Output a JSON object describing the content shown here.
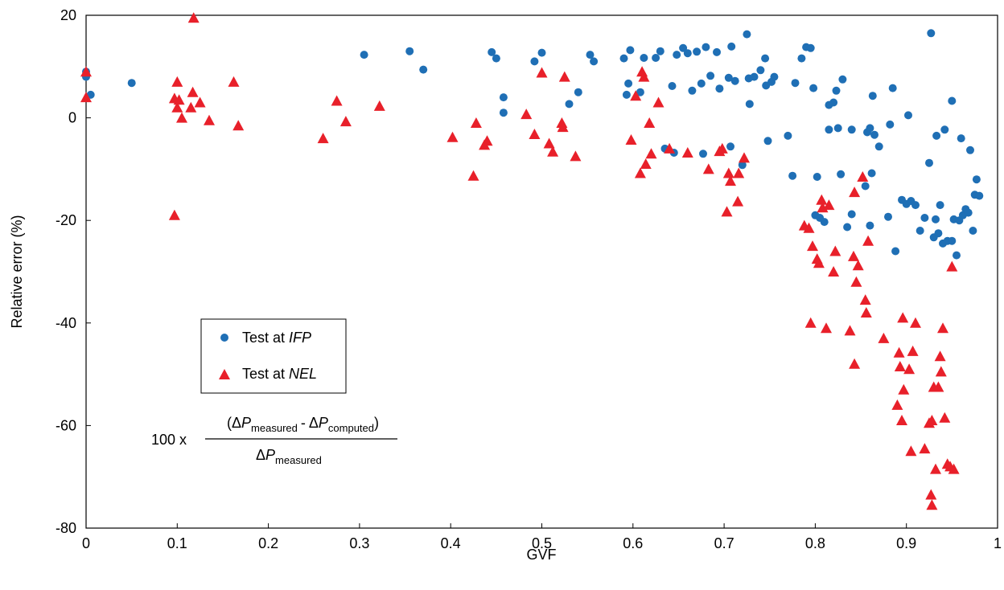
{
  "chart_data": {
    "type": "scatter",
    "xlabel": "GVF",
    "ylabel": "Relative error (%)",
    "xlim": [
      0,
      1
    ],
    "ylim": [
      -80,
      20
    ],
    "xticks": [
      "0",
      "0.1",
      "0.2",
      "0.3",
      "0.4",
      "0.5",
      "0.6",
      "0.7",
      "0.8",
      "0.9",
      "1"
    ],
    "yticks": [
      "20",
      "0",
      "-20",
      "-40",
      "-60",
      "-80"
    ],
    "grid": false,
    "legend_position": "center-left",
    "colors": {
      "ifp": "#1f6fb5",
      "nel": "#e8202a"
    },
    "series": [
      {
        "name": "Test at IFP",
        "name_prefix": "Test at ",
        "name_italic": "IFP",
        "marker": "circle",
        "points": [
          [
            0.0,
            9.0
          ],
          [
            0.0,
            8.0
          ],
          [
            0.005,
            4.5
          ],
          [
            0.05,
            6.8
          ],
          [
            0.305,
            12.3
          ],
          [
            0.355,
            13.0
          ],
          [
            0.37,
            9.4
          ],
          [
            0.445,
            12.8
          ],
          [
            0.45,
            11.6
          ],
          [
            0.458,
            4.0
          ],
          [
            0.458,
            1.0
          ],
          [
            0.492,
            11.0
          ],
          [
            0.5,
            12.7
          ],
          [
            0.53,
            2.7
          ],
          [
            0.54,
            5.0
          ],
          [
            0.553,
            12.3
          ],
          [
            0.557,
            11.0
          ],
          [
            0.59,
            11.6
          ],
          [
            0.593,
            4.5
          ],
          [
            0.595,
            6.7
          ],
          [
            0.597,
            13.2
          ],
          [
            0.608,
            5.0
          ],
          [
            0.612,
            11.7
          ],
          [
            0.625,
            11.7
          ],
          [
            0.63,
            13.0
          ],
          [
            0.635,
            -6.0
          ],
          [
            0.643,
            6.2
          ],
          [
            0.645,
            -6.8
          ],
          [
            0.648,
            12.3
          ],
          [
            0.655,
            13.6
          ],
          [
            0.66,
            12.6
          ],
          [
            0.665,
            5.3
          ],
          [
            0.67,
            12.9
          ],
          [
            0.675,
            6.7
          ],
          [
            0.677,
            -7.0
          ],
          [
            0.68,
            13.8
          ],
          [
            0.685,
            8.2
          ],
          [
            0.692,
            12.8
          ],
          [
            0.695,
            5.7
          ],
          [
            0.705,
            7.8
          ],
          [
            0.707,
            -5.6
          ],
          [
            0.708,
            13.9
          ],
          [
            0.712,
            7.2
          ],
          [
            0.72,
            -9.2
          ],
          [
            0.725,
            16.3
          ],
          [
            0.727,
            7.7
          ],
          [
            0.728,
            2.7
          ],
          [
            0.733,
            8.0
          ],
          [
            0.74,
            9.3
          ],
          [
            0.745,
            11.6
          ],
          [
            0.746,
            6.3
          ],
          [
            0.748,
            -4.5
          ],
          [
            0.752,
            7.0
          ],
          [
            0.755,
            8.0
          ],
          [
            0.77,
            -3.5
          ],
          [
            0.775,
            -11.3
          ],
          [
            0.778,
            6.8
          ],
          [
            0.785,
            11.6
          ],
          [
            0.79,
            13.8
          ],
          [
            0.795,
            13.6
          ],
          [
            0.798,
            5.8
          ],
          [
            0.8,
            -19.0
          ],
          [
            0.802,
            -11.5
          ],
          [
            0.805,
            -19.5
          ],
          [
            0.81,
            -20.3
          ],
          [
            0.815,
            2.5
          ],
          [
            0.815,
            -2.3
          ],
          [
            0.82,
            3.0
          ],
          [
            0.823,
            5.3
          ],
          [
            0.825,
            -2.0
          ],
          [
            0.828,
            -11.0
          ],
          [
            0.83,
            7.5
          ],
          [
            0.835,
            -21.3
          ],
          [
            0.84,
            -2.3
          ],
          [
            0.84,
            -18.8
          ],
          [
            0.855,
            -13.3
          ],
          [
            0.857,
            -2.8
          ],
          [
            0.86,
            -21.0
          ],
          [
            0.86,
            -2.0
          ],
          [
            0.862,
            -10.8
          ],
          [
            0.863,
            4.3
          ],
          [
            0.865,
            -3.3
          ],
          [
            0.87,
            -5.6
          ],
          [
            0.88,
            -19.3
          ],
          [
            0.882,
            -1.3
          ],
          [
            0.885,
            5.8
          ],
          [
            0.888,
            -26.0
          ],
          [
            0.895,
            -16.0
          ],
          [
            0.9,
            -16.8
          ],
          [
            0.902,
            0.5
          ],
          [
            0.905,
            -16.2
          ],
          [
            0.91,
            -17.0
          ],
          [
            0.915,
            -22.0
          ],
          [
            0.92,
            -19.5
          ],
          [
            0.925,
            -8.8
          ],
          [
            0.927,
            16.5
          ],
          [
            0.93,
            -23.3
          ],
          [
            0.932,
            -19.8
          ],
          [
            0.933,
            -3.5
          ],
          [
            0.935,
            -22.5
          ],
          [
            0.937,
            -17.0
          ],
          [
            0.94,
            -24.5
          ],
          [
            0.942,
            -2.3
          ],
          [
            0.945,
            -24.0
          ],
          [
            0.95,
            3.3
          ],
          [
            0.952,
            -19.8
          ],
          [
            0.955,
            -26.8
          ],
          [
            0.958,
            -20.0
          ],
          [
            0.96,
            -4.0
          ],
          [
            0.962,
            -19.0
          ],
          [
            0.965,
            -17.8
          ],
          [
            0.968,
            -18.5
          ],
          [
            0.97,
            -6.3
          ],
          [
            0.973,
            -22.0
          ],
          [
            0.975,
            -15.0
          ],
          [
            0.977,
            -12.0
          ],
          [
            0.98,
            -15.2
          ],
          [
            0.95,
            -24.0
          ]
        ]
      },
      {
        "name": "Test at NEL",
        "name_prefix": "Test at ",
        "name_italic": "NEL",
        "marker": "triangle",
        "points": [
          [
            0.0,
            9.0
          ],
          [
            0.0,
            4.0
          ],
          [
            0.097,
            3.8
          ],
          [
            0.097,
            -19.0
          ],
          [
            0.1,
            7.0
          ],
          [
            0.1,
            2.0
          ],
          [
            0.102,
            3.5
          ],
          [
            0.105,
            0.0
          ],
          [
            0.115,
            2.0
          ],
          [
            0.117,
            5.0
          ],
          [
            0.118,
            19.5
          ],
          [
            0.125,
            3.0
          ],
          [
            0.135,
            -0.5
          ],
          [
            0.162,
            7.0
          ],
          [
            0.167,
            -1.5
          ],
          [
            0.26,
            -4.0
          ],
          [
            0.275,
            3.3
          ],
          [
            0.285,
            -0.7
          ],
          [
            0.322,
            2.3
          ],
          [
            0.402,
            -3.8
          ],
          [
            0.425,
            -11.3
          ],
          [
            0.428,
            -1.0
          ],
          [
            0.437,
            -5.3
          ],
          [
            0.44,
            -4.5
          ],
          [
            0.483,
            0.7
          ],
          [
            0.492,
            -3.2
          ],
          [
            0.5,
            8.8
          ],
          [
            0.508,
            -5.0
          ],
          [
            0.512,
            -6.6
          ],
          [
            0.522,
            -1.0
          ],
          [
            0.523,
            -1.8
          ],
          [
            0.525,
            8.0
          ],
          [
            0.537,
            -7.5
          ],
          [
            0.598,
            -4.3
          ],
          [
            0.603,
            4.3
          ],
          [
            0.608,
            -10.8
          ],
          [
            0.61,
            9.0
          ],
          [
            0.612,
            8.0
          ],
          [
            0.614,
            -9.0
          ],
          [
            0.618,
            -1.0
          ],
          [
            0.62,
            -7.0
          ],
          [
            0.628,
            3.0
          ],
          [
            0.64,
            -6.0
          ],
          [
            0.66,
            -6.8
          ],
          [
            0.683,
            -10.0
          ],
          [
            0.695,
            -6.5
          ],
          [
            0.698,
            -6.0
          ],
          [
            0.703,
            -18.3
          ],
          [
            0.705,
            -10.8
          ],
          [
            0.707,
            -12.3
          ],
          [
            0.715,
            -16.3
          ],
          [
            0.716,
            -10.8
          ],
          [
            0.722,
            -7.8
          ],
          [
            0.788,
            -21.0
          ],
          [
            0.793,
            -21.5
          ],
          [
            0.795,
            -40.0
          ],
          [
            0.797,
            -25.0
          ],
          [
            0.802,
            -27.5
          ],
          [
            0.804,
            -28.3
          ],
          [
            0.807,
            -16.0
          ],
          [
            0.808,
            -17.5
          ],
          [
            0.812,
            -41.0
          ],
          [
            0.815,
            -17.0
          ],
          [
            0.82,
            -30.0
          ],
          [
            0.822,
            -26.0
          ],
          [
            0.838,
            -41.5
          ],
          [
            0.842,
            -27.0
          ],
          [
            0.843,
            -48.0
          ],
          [
            0.843,
            -14.5
          ],
          [
            0.845,
            -32.0
          ],
          [
            0.847,
            -28.8
          ],
          [
            0.852,
            -11.5
          ],
          [
            0.855,
            -35.5
          ],
          [
            0.856,
            -38.0
          ],
          [
            0.858,
            -24.0
          ],
          [
            0.875,
            -43.0
          ],
          [
            0.89,
            -56.0
          ],
          [
            0.892,
            -45.8
          ],
          [
            0.893,
            -48.5
          ],
          [
            0.895,
            -59.0
          ],
          [
            0.896,
            -39.0
          ],
          [
            0.897,
            -53.0
          ],
          [
            0.903,
            -49.0
          ],
          [
            0.905,
            -65.0
          ],
          [
            0.907,
            -45.5
          ],
          [
            0.91,
            -40.0
          ],
          [
            0.92,
            -64.5
          ],
          [
            0.925,
            -59.5
          ],
          [
            0.927,
            -73.5
          ],
          [
            0.928,
            -75.5
          ],
          [
            0.928,
            -59.0
          ],
          [
            0.93,
            -52.5
          ],
          [
            0.932,
            -68.5
          ],
          [
            0.935,
            -52.5
          ],
          [
            0.937,
            -46.5
          ],
          [
            0.938,
            -49.5
          ],
          [
            0.94,
            -41.0
          ],
          [
            0.942,
            -58.5
          ],
          [
            0.945,
            -67.5
          ],
          [
            0.948,
            -68.0
          ],
          [
            0.95,
            -29.0
          ],
          [
            0.952,
            -68.5
          ]
        ]
      }
    ],
    "annotation": {
      "prefix": "100 x",
      "delta": "Δ",
      "p": "P",
      "sub_measured": "measured",
      "sub_computed": "computed",
      "open_paren": "(",
      "close_paren": ")",
      "minus": "-"
    }
  }
}
